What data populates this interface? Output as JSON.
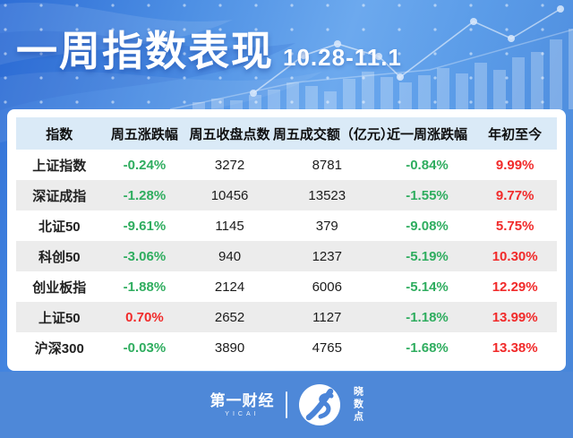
{
  "banner": {
    "title": "一周指数表现",
    "date_range": "10.28-11.1"
  },
  "table": {
    "columns": [
      "指数",
      "周五涨跌幅",
      "周五收盘点数",
      "周五成交额（亿元）",
      "近一周涨跌幅",
      "年初至今"
    ],
    "rows": [
      {
        "name": "上证指数",
        "fri_chg": "-0.24%",
        "fri_close": "3272",
        "fri_turnover": "8781",
        "week_chg": "-0.84%",
        "ytd": "9.99%"
      },
      {
        "name": "深证成指",
        "fri_chg": "-1.28%",
        "fri_close": "10456",
        "fri_turnover": "13523",
        "week_chg": "-1.55%",
        "ytd": "9.77%"
      },
      {
        "name": "北证50",
        "fri_chg": "-9.61%",
        "fri_close": "1145",
        "fri_turnover": "379",
        "week_chg": "-9.08%",
        "ytd": "5.75%"
      },
      {
        "name": "科创50",
        "fri_chg": "-3.06%",
        "fri_close": "940",
        "fri_turnover": "1237",
        "week_chg": "-5.19%",
        "ytd": "10.30%"
      },
      {
        "name": "创业板指",
        "fri_chg": "-1.88%",
        "fri_close": "2124",
        "fri_turnover": "6006",
        "week_chg": "-5.14%",
        "ytd": "12.29%"
      },
      {
        "name": "上证50",
        "fri_chg": "0.70%",
        "fri_close": "2652",
        "fri_turnover": "1127",
        "week_chg": "-1.18%",
        "ytd": "13.99%"
      },
      {
        "name": "沪深300",
        "fri_chg": "-0.03%",
        "fri_close": "3890",
        "fri_turnover": "4765",
        "week_chg": "-1.68%",
        "ytd": "13.38%"
      }
    ]
  },
  "footer": {
    "brand_cn": "第一财经",
    "brand_en": "YICAI",
    "sub_brand": "晓数点"
  },
  "colors": {
    "up_red": "#f12a2a",
    "down_green": "#2fad5f",
    "header_band": "#daeaf7",
    "stripe_gray": "#ececec",
    "footer_blue": "#4e88d8"
  }
}
